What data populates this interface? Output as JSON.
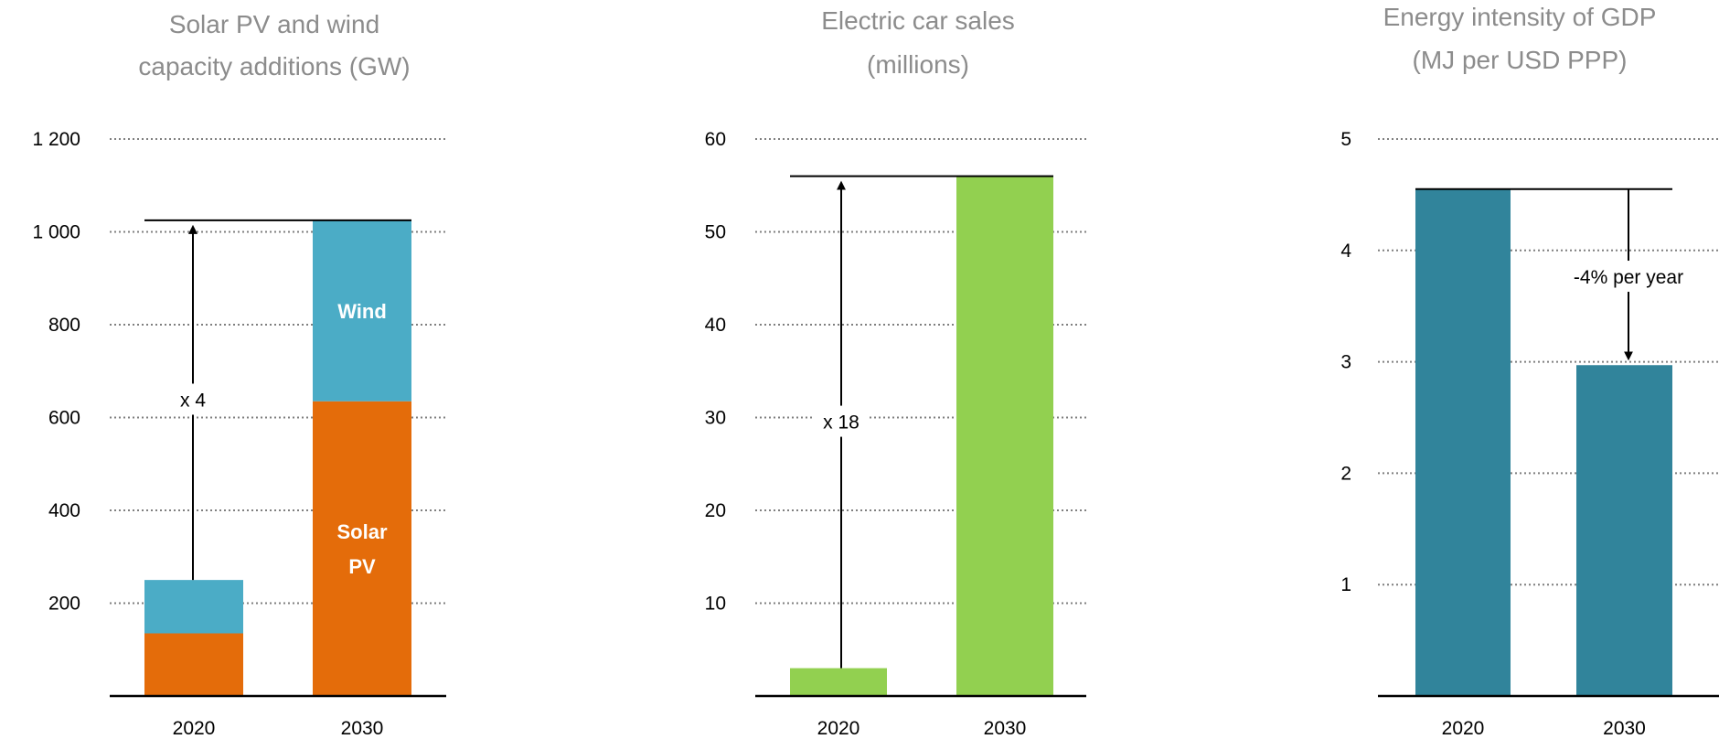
{
  "chart_data": [
    {
      "type": "bar",
      "stacked": true,
      "title_lines": [
        "Solar PV and wind",
        "capacity additions (GW)"
      ],
      "categories": [
        "2020",
        "2030"
      ],
      "series": [
        {
          "name": "Solar PV",
          "label_lines": [
            "Solar",
            "PV"
          ],
          "color": "#e46c0a",
          "values": [
            135,
            635
          ]
        },
        {
          "name": "Wind",
          "label_lines": [
            "Wind"
          ],
          "color": "#4bacc6",
          "values": [
            115,
            390
          ]
        }
      ],
      "ylim": [
        0,
        1200
      ],
      "yticks": [
        200,
        400,
        600,
        800,
        1000,
        1200
      ],
      "ytick_labels": [
        "200",
        "400",
        "600",
        "800",
        "1 000",
        "1 200"
      ],
      "grid": "dotted",
      "annotation": {
        "text": "x 4",
        "direction": "up",
        "from": 250,
        "to": 1025
      }
    },
    {
      "type": "bar",
      "title_lines": [
        "Electric car sales",
        "(millions)"
      ],
      "categories": [
        "2020",
        "2030"
      ],
      "series": [
        {
          "color": "#92d050",
          "values": [
            3,
            56
          ]
        }
      ],
      "ylim": [
        0,
        60
      ],
      "yticks": [
        10,
        20,
        30,
        40,
        50,
        60
      ],
      "ytick_labels": [
        "10",
        "20",
        "30",
        "40",
        "50",
        "60"
      ],
      "grid": "dotted",
      "annotation": {
        "text": "x 18",
        "direction": "up",
        "from": 3,
        "to": 56
      }
    },
    {
      "type": "bar",
      "title_lines": [
        "Energy intensity of GDP",
        "(MJ per USD PPP)"
      ],
      "categories": [
        "2020",
        "2030"
      ],
      "series": [
        {
          "color": "#31849b",
          "values": [
            4.55,
            2.97
          ]
        }
      ],
      "ylim": [
        0,
        5
      ],
      "yticks": [
        1,
        2,
        3,
        4,
        5
      ],
      "ytick_labels": [
        "1",
        "2",
        "3",
        "4",
        "5"
      ],
      "grid": "dotted",
      "annotation": {
        "text": "-4% per year",
        "direction": "down",
        "from": 4.55,
        "to": 2.97
      }
    }
  ]
}
